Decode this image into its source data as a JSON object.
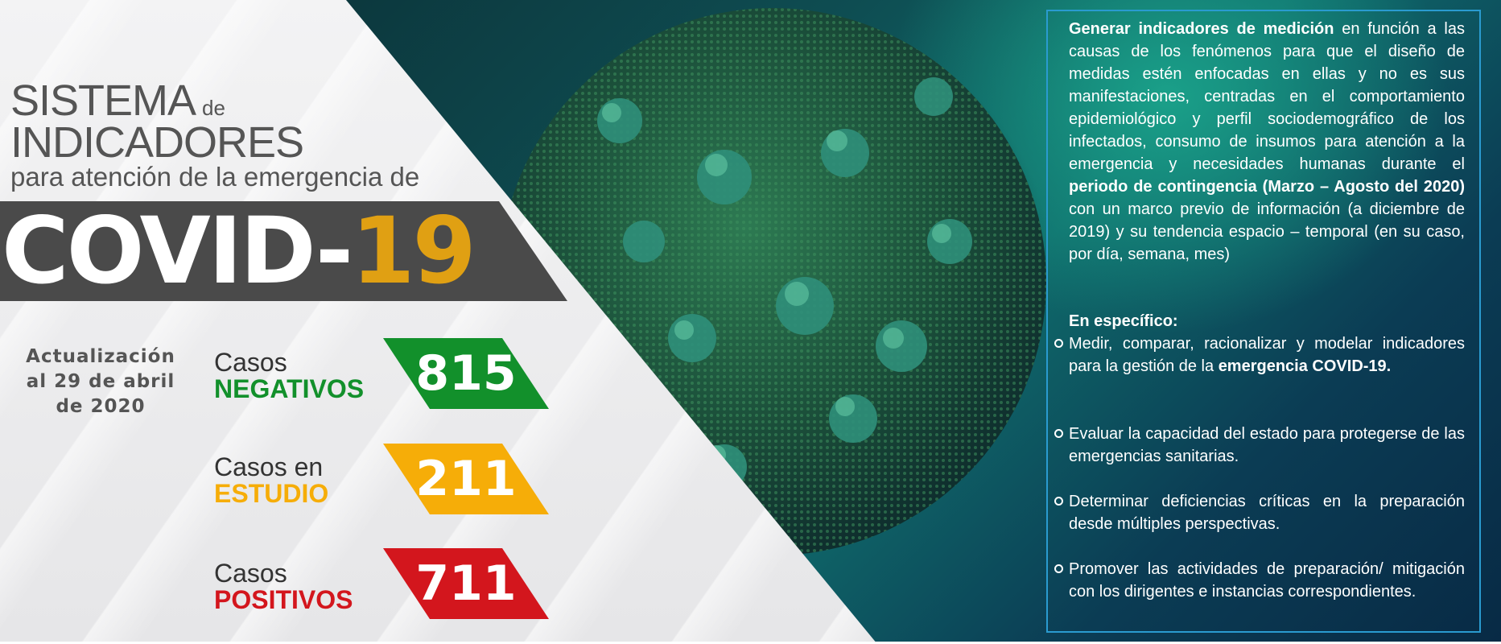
{
  "title": {
    "line1": "SISTEMA",
    "line1_small": "de",
    "line2": "INDICADORES",
    "line3": "para atención de la emergencia de",
    "covid_prefix": "COVID-",
    "covid_number": "19"
  },
  "update": "Actualización al 29 de abril de 2020",
  "stats": [
    {
      "line1": "Casos",
      "line2": "NEGATIVOS",
      "value": "815",
      "color": "#12902b"
    },
    {
      "line1": "Casos en",
      "line2": "ESTUDIO",
      "value": "211",
      "color": "#f6ad08"
    },
    {
      "line1": "Casos",
      "line2": "POSITIVOS",
      "value": "711",
      "color": "#d3161d"
    }
  ],
  "info": {
    "intro_bold": "Generar indicadores de medición",
    "intro_1": " en función a las causas de los fenómenos para que el diseño de medidas estén enfocadas en ellas y no es sus manifestaciones, centradas en el comportamiento epidemiológico y perfil sociodemográfico de los infectados, consumo de insumos para atención a la emergencia y necesidades humanas durante el ",
    "intro_bold2": "periodo de contingencia (Marzo – Agosto del 2020)",
    "intro_2": " con un marco previo de información (a diciembre de 2019) y su tendencia espacio – temporal (en su caso, por día, semana, mes)",
    "subhead": "En específico:",
    "bullet1_a": "Medir, comparar, racionalizar y modelar indicadores para la gestión de la ",
    "bullet1_b": "emergencia COVID-19.",
    "bullet2": "Evaluar la capacidad del estado para protegerse de las emergencias sanitarias.",
    "bullet3": "Determinar deficiencias críticas en la preparación desde múltiples perspectivas.",
    "bullet4": "Promover las actividades de preparación/ mitigación con los dirigentes e instancias correspondientes."
  }
}
